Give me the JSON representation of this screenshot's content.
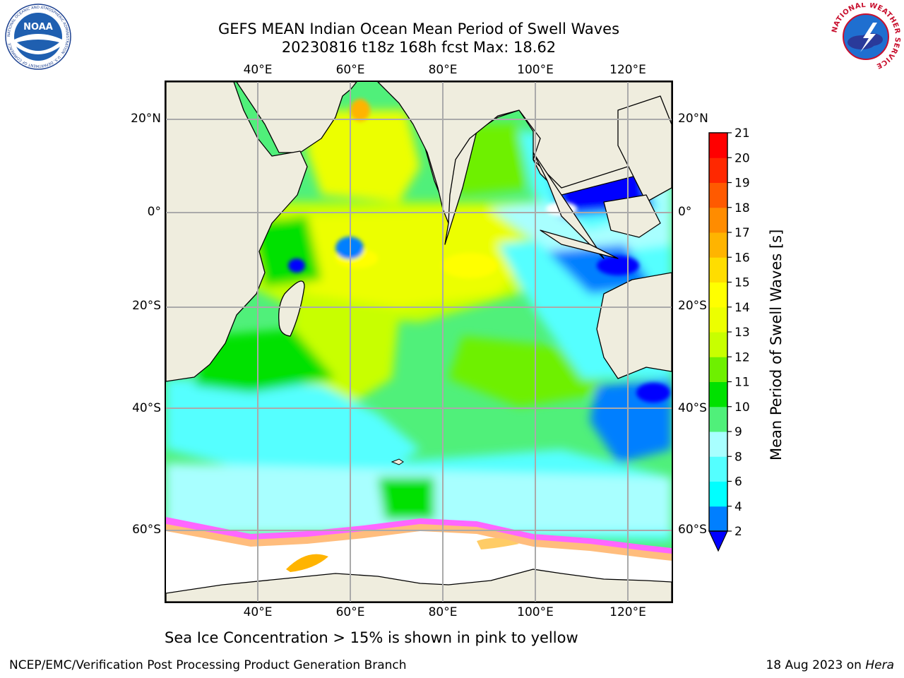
{
  "title": {
    "line1": "GEFS MEAN Indian Ocean Mean Period of Swell Waves",
    "line2": "20230816 t18z 168h fcst   Max: 18.62"
  },
  "logos": {
    "left": "NOAA",
    "left_ring_text": "NATIONAL OCEANIC AND ATMOSPHERIC ADMINISTRATION · U.S. DEPARTMENT OF COMMERCE",
    "right_ring_text": "NATIONAL WEATHER SERVICE"
  },
  "map": {
    "lon_labels": [
      "40°E",
      "60°E",
      "80°E",
      "100°E",
      "120°E"
    ],
    "lat_labels": [
      "20°N",
      "0°",
      "20°S",
      "40°S",
      "60°S"
    ],
    "lon_range": [
      20,
      130
    ],
    "lat_range": [
      -72,
      28
    ],
    "gridlines": true,
    "land_color": "#efedde",
    "ice_color": "#ffffff"
  },
  "colorbar": {
    "label": "Mean Period of Swell Waves [s]",
    "ticks": [
      "2",
      "4",
      "6",
      "8",
      "9",
      "10",
      "11",
      "12",
      "13",
      "14",
      "15",
      "16",
      "17",
      "18",
      "19",
      "20",
      "21"
    ],
    "colors": [
      "#0000ff",
      "#007fff",
      "#00ffff",
      "#54ffff",
      "#a8ffff",
      "#50f07a",
      "#00e100",
      "#6ef000",
      "#c8ff00",
      "#ecff00",
      "#ffff00",
      "#ffdd00",
      "#ffb400",
      "#ff8c00",
      "#ff5a00",
      "#ff2800",
      "#ff0000"
    ],
    "extend": "min"
  },
  "caption": "Sea Ice Concentration > 15% is shown in pink to yellow",
  "footer": {
    "left": "NCEP/EMC/Verification Post Processing Product Generation Branch",
    "date": "18 Aug 2023 on ",
    "host": "Hera"
  }
}
